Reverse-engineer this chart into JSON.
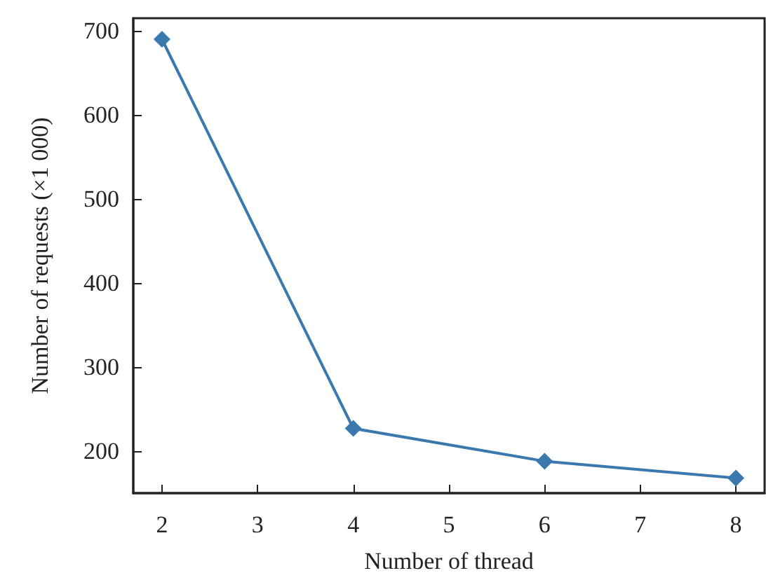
{
  "chart_data": {
    "type": "line",
    "xlabel": "Number of thread",
    "ylabel": "Number of requests (×1 000)",
    "x": [
      2,
      4,
      6,
      8
    ],
    "series": [
      {
        "color": "#3a78ae",
        "values": [
          690,
          227,
          188,
          168
        ]
      }
    ],
    "xlim": [
      1.7,
      8.3
    ],
    "xticks": [
      2,
      3,
      4,
      5,
      6,
      7,
      8
    ],
    "ylim": [
      150,
      715
    ],
    "yticks": [
      200,
      300,
      400,
      500,
      600,
      700
    ],
    "grid": false,
    "marker": "diamond",
    "line_style": "solid"
  }
}
